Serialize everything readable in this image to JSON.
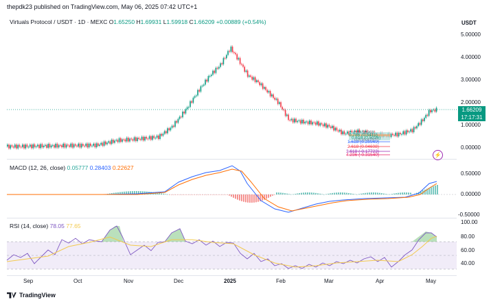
{
  "header": {
    "published": "thepdk23 published on TradingView.com, May 06, 2025 07:42 UTC+1"
  },
  "symbol": {
    "name": "Virtuals Protocol / USDT · 1D · MEXC",
    "o_label": "O",
    "o": "1.65250",
    "h_label": "H",
    "h": "1.69931",
    "l_label": "L",
    "l": "1.59918",
    "c_label": "C",
    "c": "1.66209",
    "chg": "+0.00889 (+0.54%)"
  },
  "currency": "USDT",
  "price_axis": [
    "5.00000",
    "4.00000",
    "3.00000",
    "2.00000",
    "1.00000",
    "0.00000"
  ],
  "last_price": {
    "price": "1.66209",
    "countdown": "17:17:31"
  },
  "fib_labels": [
    "1 (0.5896)",
    "0.786 (0.5411)",
    "0.618 (0.5026)",
    "0.5 (0.4757)",
    "1.618 (0.28949)",
    "2.618 (0.04608)",
    "3.618 (-0.17723)",
    "4.236 (-0.31540)"
  ],
  "macd": {
    "title": "MACD (12, 26, close)",
    "hist": "0.05777",
    "macd": "0.28403",
    "signal": "0.22627",
    "axis": [
      "0.50000",
      "0.00000",
      "-0.50000"
    ]
  },
  "rsi": {
    "title": "RSI (14, close)",
    "value": "78.05",
    "ma": "77.65",
    "axis": [
      "100.00",
      "80.00",
      "60.00",
      "40.00"
    ]
  },
  "time_axis": [
    "Sep",
    "Oct",
    "Nov",
    "Dec",
    "2025",
    "Feb",
    "Mar",
    "Apr",
    "May"
  ],
  "footer": {
    "brand": "TradingView"
  },
  "colors": {
    "up": "#089981",
    "down": "#f23645",
    "macd": "#2962ff",
    "signal": "#ff6d00",
    "rsi": "#7e57c2",
    "rsi_ma": "#f2c94c"
  }
}
